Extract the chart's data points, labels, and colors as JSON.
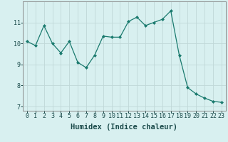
{
  "xlabel": "Humidex (Indice chaleur)",
  "x_values": [
    0,
    1,
    2,
    3,
    4,
    5,
    6,
    7,
    8,
    9,
    10,
    11,
    12,
    13,
    14,
    15,
    16,
    17,
    18,
    19,
    20,
    21,
    22,
    23
  ],
  "y_values": [
    10.1,
    9.9,
    10.85,
    10.0,
    9.55,
    10.1,
    9.1,
    8.85,
    9.45,
    10.35,
    10.3,
    10.3,
    11.05,
    11.25,
    10.85,
    11.0,
    11.15,
    11.55,
    9.45,
    7.9,
    7.6,
    7.4,
    7.25,
    7.2
  ],
  "ylim": [
    6.8,
    12.0
  ],
  "xlim": [
    -0.5,
    23.5
  ],
  "yticks": [
    7,
    8,
    9,
    10,
    11
  ],
  "xticks": [
    0,
    1,
    2,
    3,
    4,
    5,
    6,
    7,
    8,
    9,
    10,
    11,
    12,
    13,
    14,
    15,
    16,
    17,
    18,
    19,
    20,
    21,
    22,
    23
  ],
  "line_color": "#1a7a6e",
  "marker": "D",
  "marker_size": 2.0,
  "bg_color": "#d8f0f0",
  "grid_color": "#c0d8d8",
  "axis_color": "#888888",
  "tick_label_fontsize": 6.0,
  "xlabel_fontsize": 7.5
}
